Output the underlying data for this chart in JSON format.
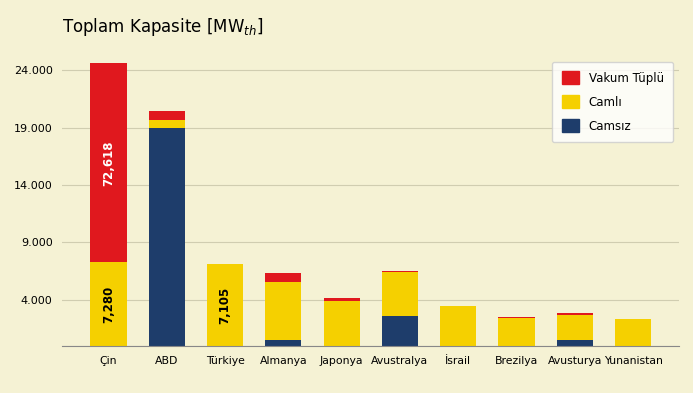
{
  "categories": [
    "Çin",
    "ABD",
    "Türkiye",
    "Almanya",
    "Japonya",
    "Avustralya",
    "İsrail",
    "Brezilya",
    "Avusturya",
    "Yunanistan"
  ],
  "vakum_tuplu": [
    17300,
    700,
    0,
    700,
    300,
    100,
    0,
    100,
    200,
    0
  ],
  "camli": [
    7280,
    700,
    7105,
    5100,
    3900,
    3850,
    3500,
    2400,
    2200,
    2350
  ],
  "camsiz": [
    0,
    19000,
    0,
    500,
    0,
    2600,
    0,
    0,
    500,
    0
  ],
  "label_72618": {
    "text": "72,618",
    "val": 17300
  },
  "label_7280": {
    "text": "7,280",
    "val": 7280
  },
  "label_7105": {
    "text": "7,105",
    "val": 7105
  },
  "colors": {
    "vakum_tuplu": "#e0181e",
    "camli": "#f5d000",
    "camsiz": "#1e3d6b"
  },
  "ylim": [
    0,
    26000
  ],
  "yticks": [
    0,
    4000,
    9000,
    14000,
    19000,
    24000
  ],
  "background_color": "#f5f2d4",
  "fig_color": "#f5f2d4",
  "grid_color": "#d0cdb0",
  "title": "Toplam Kapasite [MW$_{th}$]",
  "title_fontsize": 12
}
